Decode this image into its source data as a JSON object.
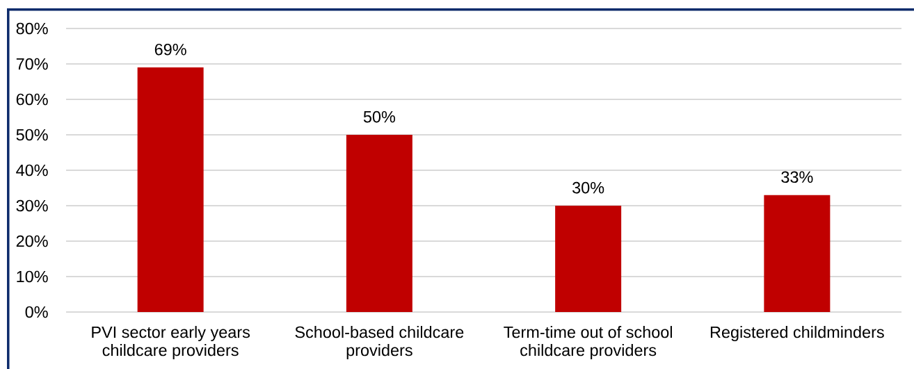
{
  "chart_data": {
    "type": "bar",
    "categories": [
      "PVI sector early years childcare providers",
      "School-based childcare providers",
      "Term-time out of school childcare providers",
      "Registered childminders"
    ],
    "values": [
      69,
      50,
      30,
      33
    ],
    "color": "#c00000",
    "value_labels": [
      "69%",
      "50%",
      "30%",
      "33%"
    ],
    "ylim": [
      0,
      80
    ],
    "yticks": [
      {
        "value": 0,
        "label": "0%"
      },
      {
        "value": 10,
        "label": "10%"
      },
      {
        "value": 20,
        "label": "20%"
      },
      {
        "value": 30,
        "label": "30%"
      },
      {
        "value": 40,
        "label": "40%"
      },
      {
        "value": 50,
        "label": "50%"
      },
      {
        "value": 60,
        "label": "60%"
      },
      {
        "value": 70,
        "label": "70%"
      },
      {
        "value": 80,
        "label": "80%"
      }
    ],
    "grid": "y"
  }
}
